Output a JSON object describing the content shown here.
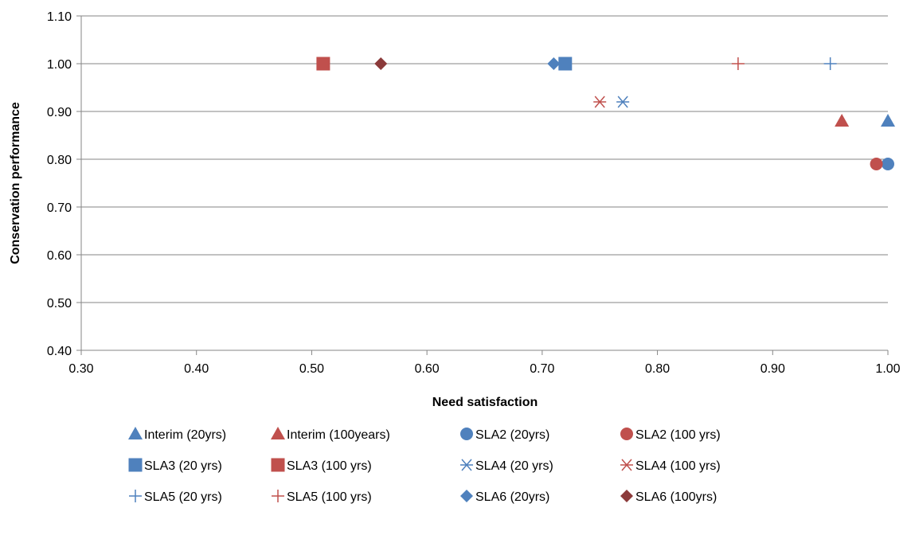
{
  "chart_data": {
    "type": "scatter",
    "title": "",
    "xlabel": "Need satisfaction",
    "ylabel": "Conservation performance",
    "xlim": [
      0.3,
      1.0
    ],
    "ylim": [
      0.4,
      1.1
    ],
    "xticks": [
      "0.30",
      "0.40",
      "0.50",
      "0.60",
      "0.70",
      "0.80",
      "0.90",
      "1.00"
    ],
    "yticks": [
      "0.40",
      "0.50",
      "0.60",
      "0.70",
      "0.80",
      "0.90",
      "1.00",
      "1.10"
    ],
    "grid": "horizontal",
    "legend_position": "bottom",
    "series": [
      {
        "name": "Interim (20yrs)",
        "marker": "triangle",
        "color": "#4f81bd",
        "x": [
          1.0
        ],
        "y": [
          0.88
        ]
      },
      {
        "name": "Interim (100years)",
        "marker": "triangle",
        "color": "#c0504d",
        "x": [
          0.96
        ],
        "y": [
          0.88
        ]
      },
      {
        "name": "SLA2 (20yrs)",
        "marker": "circle",
        "color": "#4f81bd",
        "x": [
          1.0
        ],
        "y": [
          0.79
        ]
      },
      {
        "name": "SLA2 (100 yrs)",
        "marker": "circle",
        "color": "#c0504d",
        "x": [
          0.99
        ],
        "y": [
          0.79
        ]
      },
      {
        "name": "SLA3 (20 yrs)",
        "marker": "square",
        "color": "#4f81bd",
        "x": [
          0.72
        ],
        "y": [
          1.0
        ]
      },
      {
        "name": "SLA3 (100 yrs)",
        "marker": "square",
        "color": "#c0504d",
        "x": [
          0.51
        ],
        "y": [
          1.0
        ]
      },
      {
        "name": "SLA4 (20 yrs)",
        "marker": "star",
        "color": "#4f81bd",
        "x": [
          0.77
        ],
        "y": [
          0.92
        ]
      },
      {
        "name": "SLA4 (100 yrs)",
        "marker": "star",
        "color": "#c0504d",
        "x": [
          0.75
        ],
        "y": [
          0.92
        ]
      },
      {
        "name": "SLA5 (20 yrs)",
        "marker": "plus",
        "color": "#4f81bd",
        "x": [
          0.95
        ],
        "y": [
          1.0
        ]
      },
      {
        "name": "SLA5 (100 yrs)",
        "marker": "plus",
        "color": "#c0504d",
        "x": [
          0.87
        ],
        "y": [
          1.0
        ]
      },
      {
        "name": "SLA6 (20yrs)",
        "marker": "diamond",
        "color": "#4f81bd",
        "x": [
          0.71
        ],
        "y": [
          1.0
        ]
      },
      {
        "name": "SLA6 (100yrs)",
        "marker": "diamond",
        "color": "#8b3a3a",
        "x": [
          0.56
        ],
        "y": [
          1.0
        ]
      }
    ]
  }
}
